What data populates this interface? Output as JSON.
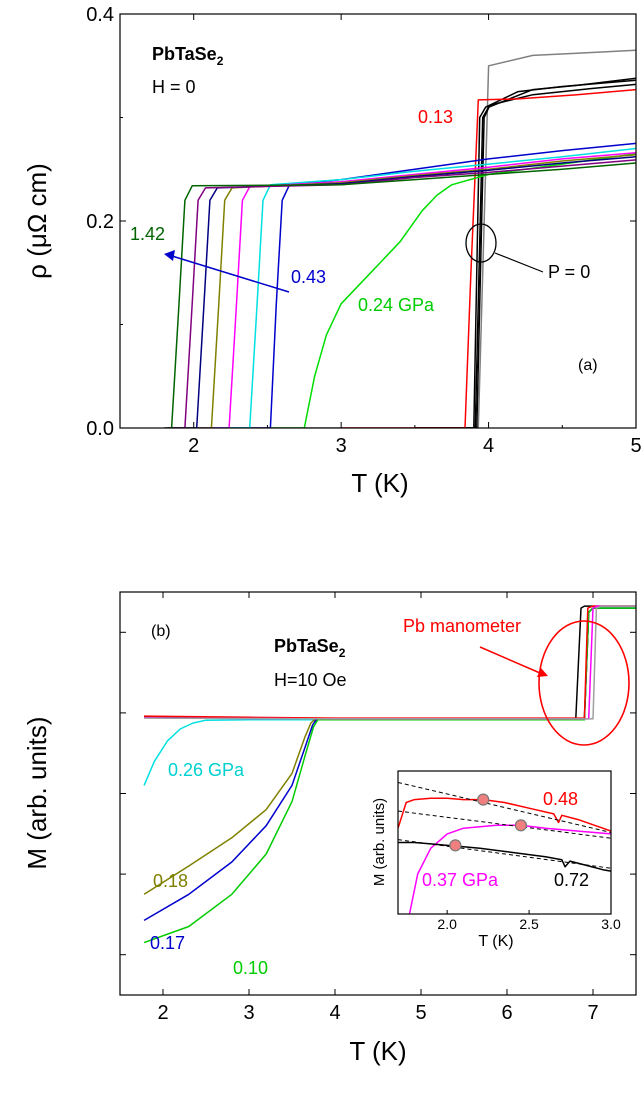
{
  "chart_data": [
    {
      "type": "line",
      "panel_label": "(a)",
      "material": {
        "main": "PbTaSe",
        "sub": "2"
      },
      "condition": "H = 0",
      "xlabel": "T (K)",
      "ylabel": "ρ (μΩ cm)",
      "xlim": [
        1.5,
        5.0
      ],
      "ylim": [
        0.0,
        0.4
      ],
      "xticks": [
        2,
        3,
        4,
        5
      ],
      "xtick_labels": [
        "2",
        "3",
        "4",
        "5"
      ],
      "yticks": [
        0.0,
        0.2,
        0.4
      ],
      "ytick_labels": [
        "0.0",
        "0.2",
        "0.4"
      ],
      "annotations": {
        "p013": "0.13",
        "p142": "1.42",
        "p043": "0.43",
        "p024": "0.24 GPa",
        "p0": "P = 0"
      },
      "series": [
        {
          "color": "#808080",
          "x": [
            1.8,
            2.0,
            3.8,
            3.93,
            4.0,
            4.3,
            4.6,
            5.0
          ],
          "y": [
            0.0,
            0.0,
            0.0,
            0.0,
            0.35,
            0.36,
            0.362,
            0.365
          ]
        },
        {
          "color": "#000000",
          "x": [
            3.5,
            3.9,
            3.94,
            3.98,
            4.2,
            4.5,
            5.0
          ],
          "y": [
            0.0,
            0.0,
            0.3,
            0.31,
            0.325,
            0.33,
            0.336
          ]
        },
        {
          "color": "#000000",
          "x": [
            3.5,
            3.91,
            3.96,
            4.0,
            4.3,
            4.6,
            5.0
          ],
          "y": [
            0.0,
            0.0,
            0.3,
            0.31,
            0.327,
            0.331,
            0.338
          ]
        },
        {
          "color": "#000000",
          "x": [
            3.5,
            3.92,
            3.97,
            4.01,
            4.3,
            4.7,
            5.0
          ],
          "y": [
            0.0,
            0.0,
            0.3,
            0.312,
            0.322,
            0.328,
            0.332
          ]
        },
        {
          "color": "#ff0000",
          "x": [
            3.0,
            3.84,
            3.88,
            3.93,
            4.2,
            4.6,
            5.0
          ],
          "y": [
            0.0,
            0.0,
            0.15,
            0.317,
            0.318,
            0.322,
            0.327
          ]
        },
        {
          "color": "#00dd00",
          "x": [
            2.5,
            2.75,
            2.82,
            2.9,
            3.0,
            3.2,
            3.4,
            3.55,
            3.65,
            3.75,
            4.0,
            4.5,
            5.0
          ],
          "y": [
            0.0,
            0.0,
            0.05,
            0.09,
            0.12,
            0.15,
            0.18,
            0.21,
            0.225,
            0.235,
            0.245,
            0.255,
            0.265
          ]
        },
        {
          "color": "#0000cc",
          "x": [
            2.0,
            2.52,
            2.56,
            2.6,
            2.65,
            3.0,
            3.5,
            4.0,
            4.5,
            5.0
          ],
          "y": [
            0.0,
            0.0,
            0.12,
            0.22,
            0.235,
            0.24,
            0.25,
            0.26,
            0.268,
            0.275
          ]
        },
        {
          "color": "#00e0e0",
          "x": [
            2.0,
            2.38,
            2.43,
            2.47,
            2.52,
            3.0,
            3.5,
            4.0,
            4.5,
            5.0
          ],
          "y": [
            0.0,
            0.0,
            0.12,
            0.22,
            0.235,
            0.24,
            0.248,
            0.255,
            0.262,
            0.27
          ]
        },
        {
          "color": "#ff00ff",
          "x": [
            2.0,
            2.24,
            2.29,
            2.33,
            2.38,
            3.0,
            3.5,
            4.0,
            4.5,
            5.0
          ],
          "y": [
            0.0,
            0.0,
            0.12,
            0.22,
            0.233,
            0.238,
            0.245,
            0.252,
            0.26,
            0.266
          ]
        },
        {
          "color": "#808000",
          "x": [
            1.85,
            2.12,
            2.17,
            2.21,
            2.26,
            3.0,
            3.5,
            4.0,
            4.5,
            5.0
          ],
          "y": [
            0.0,
            0.0,
            0.12,
            0.22,
            0.232,
            0.237,
            0.244,
            0.25,
            0.258,
            0.264
          ]
        },
        {
          "color": "#000080",
          "x": [
            1.85,
            2.02,
            2.07,
            2.11,
            2.16,
            3.0,
            3.5,
            4.0,
            4.5,
            5.0
          ],
          "y": [
            0.0,
            0.0,
            0.12,
            0.22,
            0.232,
            0.236,
            0.243,
            0.249,
            0.256,
            0.262
          ]
        },
        {
          "color": "#800080",
          "x": [
            1.82,
            1.94,
            1.99,
            2.03,
            2.08,
            3.0,
            3.5,
            4.0,
            4.5,
            5.0
          ],
          "y": [
            0.0,
            0.0,
            0.12,
            0.22,
            0.232,
            0.235,
            0.242,
            0.247,
            0.253,
            0.259
          ]
        },
        {
          "color": "#006400",
          "x": [
            1.8,
            1.85,
            1.9,
            1.94,
            1.99,
            3.0,
            3.5,
            4.0,
            4.5,
            5.0
          ],
          "y": [
            0.0,
            0.0,
            0.12,
            0.22,
            0.234,
            0.235,
            0.24,
            0.245,
            0.25,
            0.256
          ]
        }
      ]
    },
    {
      "type": "line",
      "panel_label": "(b)",
      "material": {
        "main": "PbTaSe",
        "sub": "2"
      },
      "condition": "H=10 Oe",
      "xlabel": "T (K)",
      "ylabel": "M (arb. units)",
      "xlim": [
        1.5,
        7.5
      ],
      "ylim": [
        0.0,
        1.0
      ],
      "xticks": [
        2,
        3,
        4,
        5,
        6,
        7
      ],
      "xtick_labels": [
        "2",
        "3",
        "4",
        "5",
        "6",
        "7"
      ],
      "annotations": {
        "pb": "Pb manometer",
        "p026": "0.26 GPa",
        "p018": "0.18",
        "p017": "0.17",
        "p010": "0.10"
      },
      "series": [
        {
          "color": "#00e0e0",
          "x": [
            1.78,
            1.9,
            2.05,
            2.2,
            2.35,
            2.5,
            3.0,
            4.0,
            5.0,
            6.9,
            6.95,
            7.0,
            7.5
          ],
          "y": [
            0.52,
            0.58,
            0.63,
            0.66,
            0.675,
            0.682,
            0.683,
            0.683,
            0.683,
            0.683,
            0.95,
            0.96,
            0.96
          ]
        },
        {
          "color": "#808000",
          "x": [
            1.78,
            2.3,
            2.8,
            3.2,
            3.5,
            3.65,
            3.72,
            3.76,
            4.0,
            5.0,
            6.9,
            6.95,
            7.0,
            7.5
          ],
          "y": [
            0.25,
            0.32,
            0.39,
            0.46,
            0.55,
            0.64,
            0.675,
            0.683,
            0.683,
            0.683,
            0.683,
            0.95,
            0.96,
            0.96
          ]
        },
        {
          "color": "#0000cc",
          "x": [
            1.78,
            2.3,
            2.8,
            3.2,
            3.5,
            3.66,
            3.74,
            3.78,
            4.0,
            5.0,
            6.9,
            6.95,
            7.0,
            7.5
          ],
          "y": [
            0.185,
            0.25,
            0.33,
            0.42,
            0.52,
            0.62,
            0.67,
            0.683,
            0.683,
            0.683,
            0.683,
            0.95,
            0.96,
            0.96
          ]
        },
        {
          "color": "#00cc00",
          "x": [
            1.78,
            2.3,
            2.8,
            3.2,
            3.5,
            3.66,
            3.75,
            3.8,
            4.0,
            5.0,
            6.9,
            6.95,
            7.0,
            7.5
          ],
          "y": [
            0.13,
            0.17,
            0.25,
            0.35,
            0.48,
            0.6,
            0.665,
            0.683,
            0.683,
            0.683,
            0.683,
            0.95,
            0.96,
            0.96
          ]
        },
        {
          "color": "#000000",
          "x": [
            1.78,
            3.0,
            4.0,
            5.0,
            6.8,
            6.86,
            6.9,
            7.5
          ],
          "y": [
            0.69,
            0.688,
            0.686,
            0.686,
            0.686,
            0.96,
            0.965,
            0.965
          ]
        },
        {
          "color": "#ff0000",
          "x": [
            1.78,
            3.0,
            4.0,
            5.0,
            6.9,
            6.94,
            7.0,
            7.5
          ],
          "y": [
            0.692,
            0.689,
            0.687,
            0.687,
            0.687,
            0.96,
            0.965,
            0.965
          ]
        },
        {
          "color": "#ff00ff",
          "x": [
            1.78,
            3.0,
            4.0,
            5.0,
            6.95,
            7.0,
            7.05,
            7.5
          ],
          "y": [
            0.688,
            0.686,
            0.685,
            0.685,
            0.685,
            0.96,
            0.965,
            0.965
          ]
        },
        {
          "color": "#a0a0a0",
          "x": [
            1.78,
            3.0,
            4.0,
            5.0,
            7.0,
            7.04,
            7.1,
            7.5
          ],
          "y": [
            0.687,
            0.686,
            0.685,
            0.685,
            0.685,
            0.96,
            0.965,
            0.965
          ]
        }
      ],
      "inset": {
        "xlabel": "T (K)",
        "ylabel": "M (arb. units)",
        "xlim": [
          1.7,
          3.0
        ],
        "ylim": [
          0.0,
          1.0
        ],
        "xticks": [
          2.0,
          2.5,
          3.0
        ],
        "xtick_labels": [
          "2.0",
          "2.5",
          "3.0"
        ],
        "annotations": {
          "p048": "0.48",
          "p037": "0.37 GPa",
          "p072": "0.72"
        },
        "series": [
          {
            "color": "#ff0000",
            "x": [
              1.7,
              1.75,
              1.8,
              1.9,
              2.0,
              2.1,
              2.22,
              2.35,
              2.5,
              2.65,
              2.68,
              2.7,
              2.8,
              2.9,
              3.0
            ],
            "y": [
              0.6,
              0.78,
              0.8,
              0.81,
              0.81,
              0.8,
              0.8,
              0.78,
              0.74,
              0.7,
              0.64,
              0.69,
              0.66,
              0.62,
              0.58
            ]
          },
          {
            "color": "#ff00ff",
            "x": [
              1.77,
              1.82,
              1.9,
              2.0,
              2.1,
              2.2,
              2.3,
              2.45,
              2.6,
              2.8,
              3.0
            ],
            "y": [
              0.0,
              0.28,
              0.46,
              0.56,
              0.6,
              0.61,
              0.62,
              0.62,
              0.6,
              0.58,
              0.56
            ]
          },
          {
            "color": "#000000",
            "x": [
              1.7,
              1.8,
              1.9,
              2.0,
              2.1,
              2.2,
              2.4,
              2.6,
              2.7,
              2.72,
              2.75,
              2.85,
              2.95,
              3.0
            ],
            "y": [
              0.5,
              0.5,
              0.49,
              0.48,
              0.47,
              0.46,
              0.43,
              0.4,
              0.38,
              0.33,
              0.37,
              0.34,
              0.31,
              0.3
            ]
          }
        ],
        "guides": [
          {
            "x": [
              1.7,
              3.0
            ],
            "y": [
              0.92,
              0.57
            ]
          },
          {
            "x": [
              1.7,
              3.0
            ],
            "y": [
              0.72,
              0.53
            ]
          },
          {
            "x": [
              1.7,
              3.0
            ],
            "y": [
              0.52,
              0.32
            ]
          }
        ],
        "markers": [
          {
            "x": 2.22,
            "y": 0.8
          },
          {
            "x": 2.45,
            "y": 0.62
          },
          {
            "x": 2.05,
            "y": 0.48
          }
        ]
      }
    }
  ]
}
